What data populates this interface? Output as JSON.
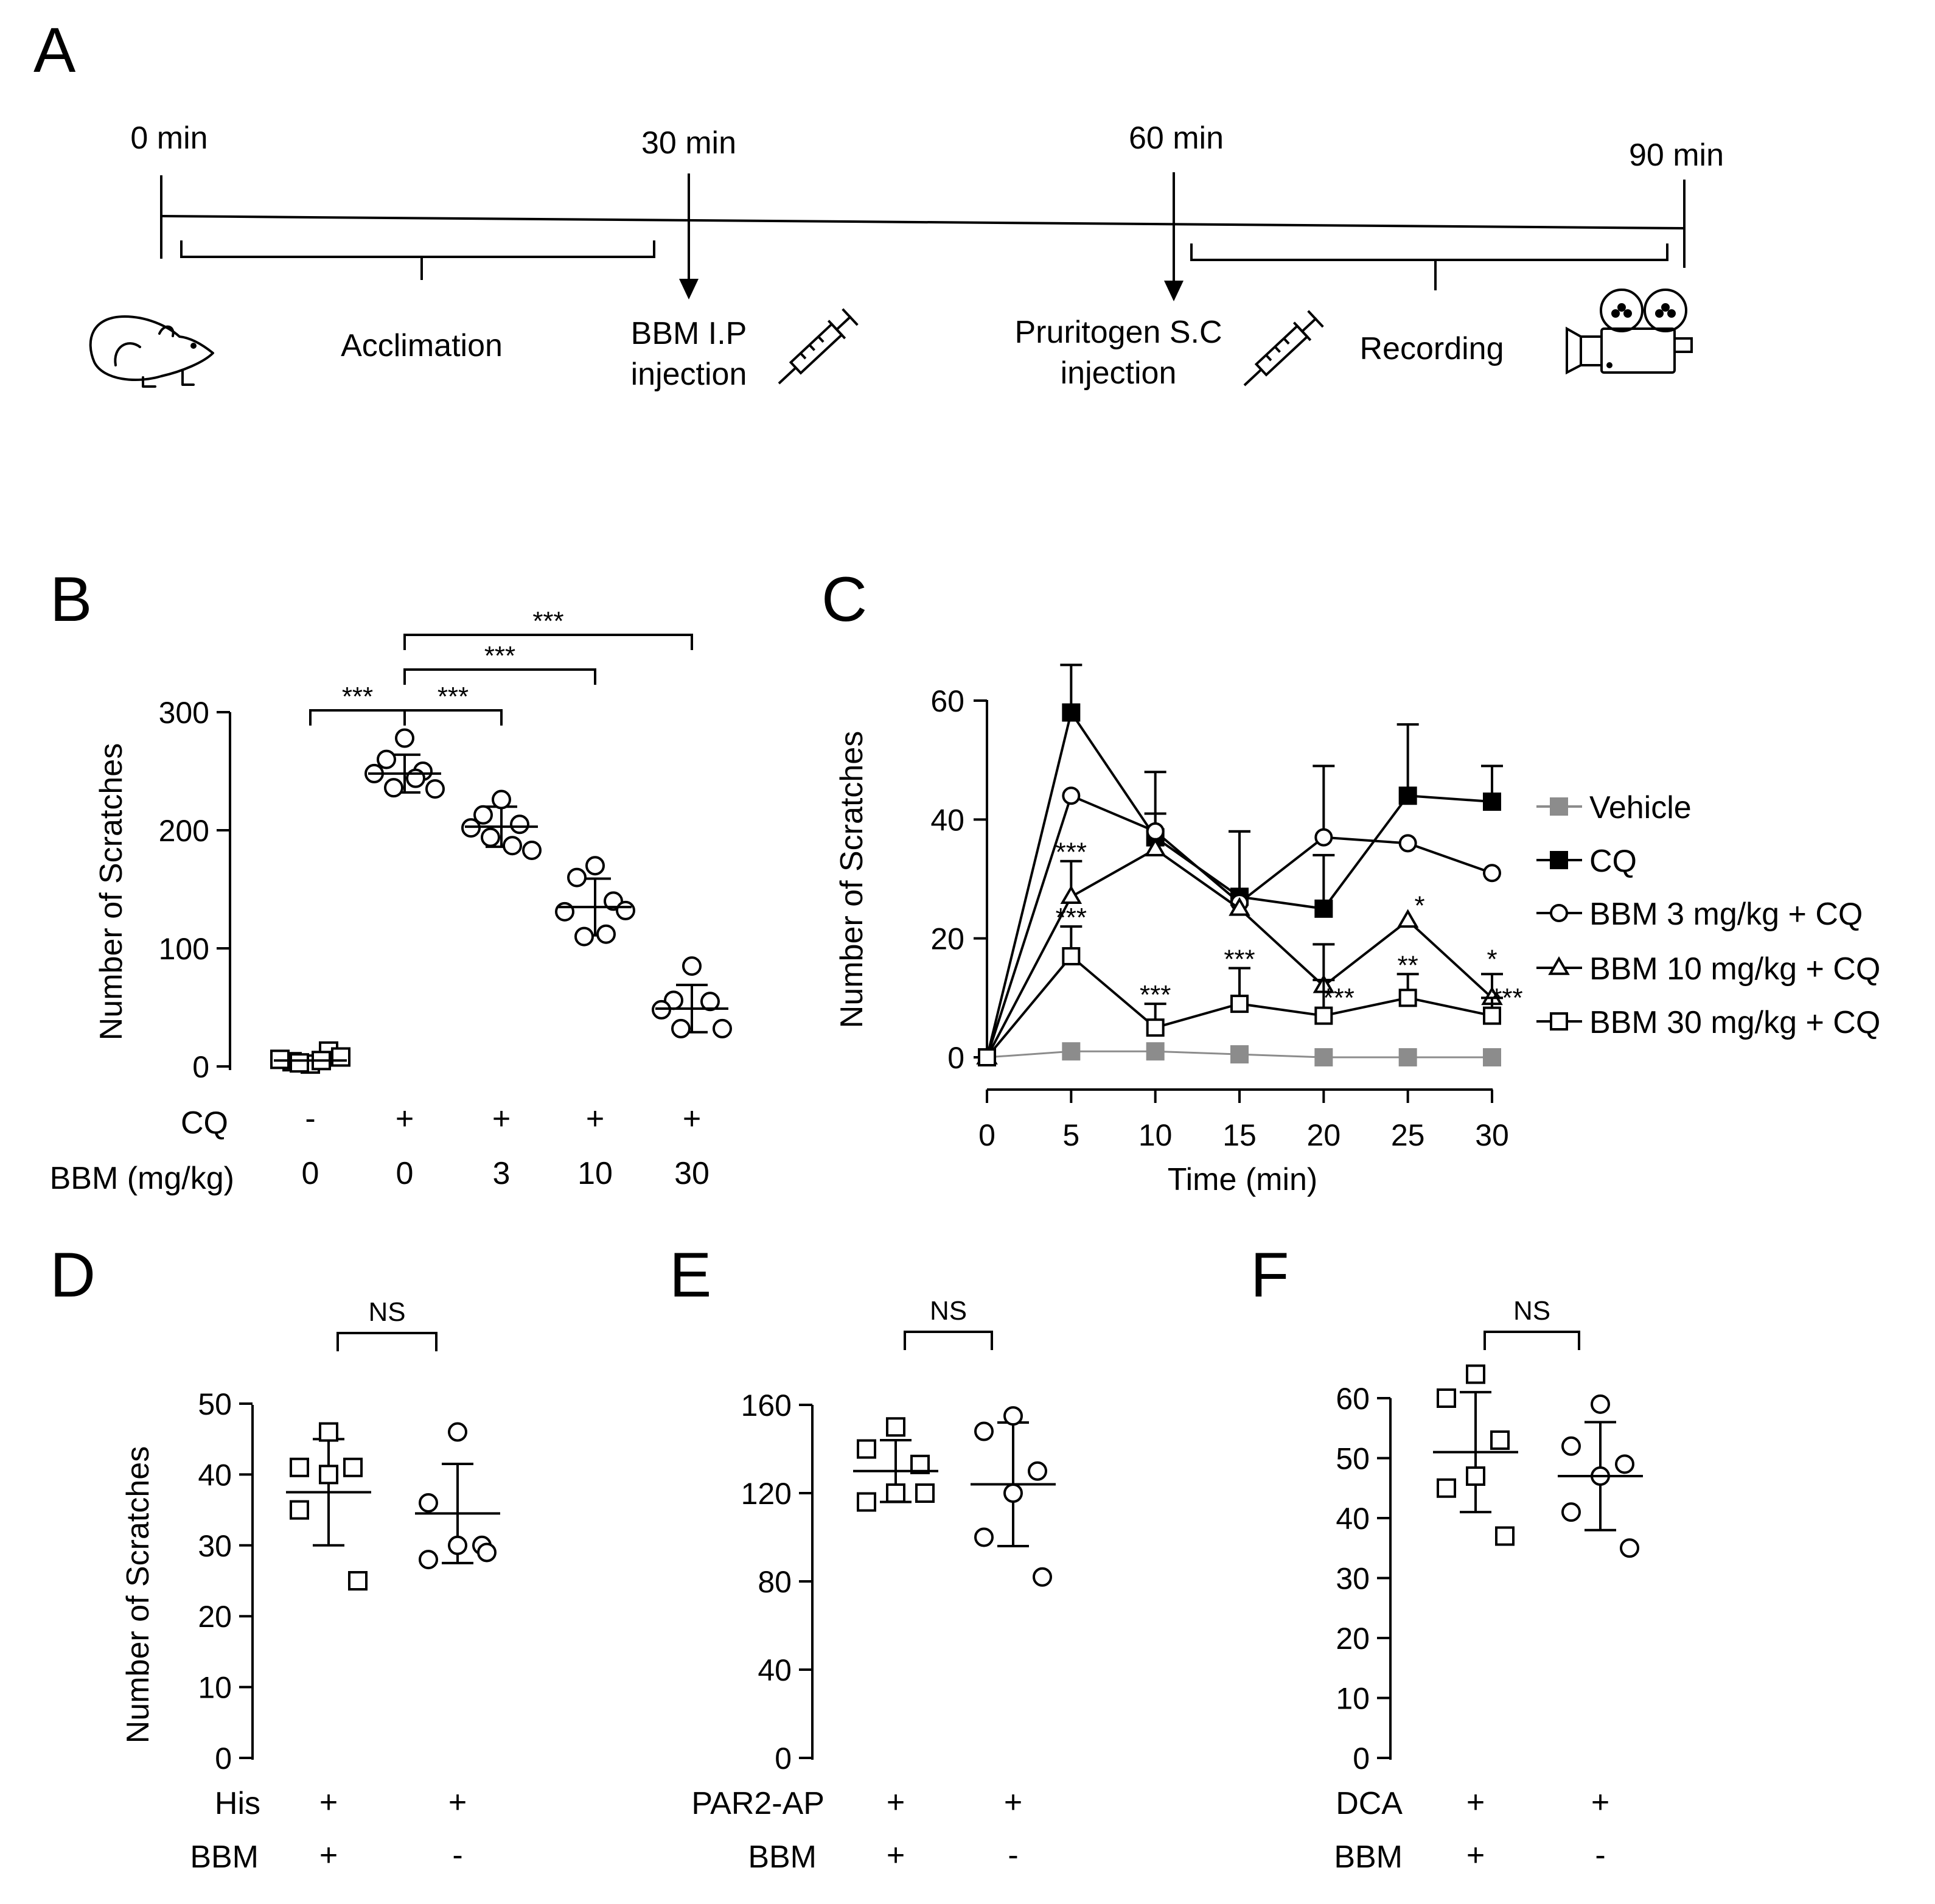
{
  "panel_labels": {
    "A": "A",
    "B": "B",
    "C": "C",
    "D": "D",
    "E": "E",
    "F": "F"
  },
  "timeline": {
    "times": [
      "0 min",
      "30 min",
      "60 min",
      "90 min"
    ],
    "acclimation": "Acclimation",
    "bbm_line1": "BBM I.P",
    "bbm_line2": "injection",
    "prur_line1": "Pruritogen S.C",
    "prur_line2": "injection",
    "recording": "Recording",
    "icons": [
      "mouse-icon",
      "syringe-icon",
      "syringe-icon",
      "movie-camera-icon"
    ]
  },
  "chart_data": [
    {
      "id": "B",
      "type": "scatter",
      "ylabel": "Number of Scratches",
      "ylim": [
        0,
        300
      ],
      "yticks": [
        0,
        100,
        200,
        300
      ],
      "rows": [
        {
          "label": "CQ",
          "values": [
            "-",
            "+",
            "+",
            "+",
            "+"
          ]
        },
        {
          "label": "BBM (mg/kg)",
          "values": [
            "0",
            "0",
            "3",
            "10",
            "30"
          ]
        }
      ],
      "groups": [
        {
          "marker": "square",
          "mean": 5,
          "sd": 4,
          "points": [
            2,
            4,
            13,
            6,
            8,
            3,
            5
          ]
        },
        {
          "marker": "circle",
          "mean": 248,
          "sd": 16,
          "points": [
            278,
            260,
            250,
            248,
            235,
            236,
            244
          ]
        },
        {
          "marker": "circle",
          "mean": 203,
          "sd": 17,
          "points": [
            226,
            213,
            205,
            202,
            183,
            194,
            187
          ]
        },
        {
          "marker": "circle",
          "mean": 135,
          "sd": 24,
          "points": [
            170,
            160,
            140,
            131,
            132,
            110,
            112
          ]
        },
        {
          "marker": "circle",
          "mean": 49,
          "sd": 20,
          "points": [
            85,
            56,
            55,
            48,
            32,
            32
          ]
        }
      ],
      "brackets": [
        {
          "from": 0,
          "to": 1,
          "label": "***"
        },
        {
          "from": 1,
          "to": 2,
          "label": "***"
        },
        {
          "from": 1,
          "to": 3,
          "label": "***"
        },
        {
          "from": 1,
          "to": 4,
          "label": "***"
        }
      ]
    },
    {
      "id": "C",
      "type": "line",
      "xlabel": "Time (min)",
      "ylabel": "Number of Scratches",
      "x": [
        0,
        5,
        10,
        15,
        20,
        25,
        30
      ],
      "ylim": [
        0,
        60
      ],
      "yticks": [
        0,
        20,
        40,
        60
      ],
      "series": [
        {
          "name": "Vehicle",
          "marker": "square-filled",
          "color": "#8c8c8c",
          "values": [
            0,
            1,
            1,
            0.5,
            0,
            0,
            0
          ],
          "err": [
            0,
            0,
            0,
            0,
            0,
            0,
            0
          ]
        },
        {
          "name": "CQ",
          "marker": "square-filled",
          "color": "#000000",
          "values": [
            0,
            58,
            37,
            27,
            25,
            44,
            43
          ],
          "err": [
            0,
            8,
            11,
            11,
            9,
            12,
            6
          ]
        },
        {
          "name": "BBM 3 mg/kg + CQ",
          "marker": "circle",
          "color": "#000000",
          "values": [
            0,
            44,
            38,
            26,
            37,
            36,
            31
          ],
          "err": [
            0,
            0,
            3,
            12,
            12,
            0,
            0
          ]
        },
        {
          "name": "BBM 10 mg/kg + CQ",
          "marker": "triangle",
          "color": "#000000",
          "values": [
            0,
            27,
            35,
            25,
            12,
            23,
            10
          ],
          "err": [
            0,
            6,
            0,
            0,
            7,
            0,
            4
          ]
        },
        {
          "name": "BBM 30 mg/kg + CQ",
          "marker": "square",
          "color": "#000000",
          "values": [
            0,
            17,
            5,
            9,
            7,
            10,
            7
          ],
          "err": [
            0,
            5,
            4,
            6,
            6,
            4,
            3
          ]
        }
      ],
      "annotations": [
        {
          "x": 5,
          "y": 33,
          "text": "***"
        },
        {
          "x": 5,
          "y": 22,
          "text": "***"
        },
        {
          "x": 10,
          "y": 9,
          "text": "***"
        },
        {
          "x": 15,
          "y": 15,
          "text": "***"
        },
        {
          "x": 20.9,
          "y": 8.5,
          "text": "***"
        },
        {
          "x": 25,
          "y": 14,
          "text": "**"
        },
        {
          "x": 25.7,
          "y": 24,
          "text": "*"
        },
        {
          "x": 30,
          "y": 15,
          "text": "*"
        },
        {
          "x": 30.9,
          "y": 8.5,
          "text": "***"
        }
      ]
    },
    {
      "id": "D",
      "type": "scatter",
      "ylabel": "Number of Scratches",
      "ylim": [
        0,
        50
      ],
      "yticks": [
        0,
        10,
        20,
        30,
        40,
        50
      ],
      "rows": [
        {
          "label": "His",
          "values": [
            "+",
            "+"
          ]
        },
        {
          "label": "BBM",
          "values": [
            "+",
            "-"
          ]
        }
      ],
      "bracket_label": "NS",
      "groups": [
        {
          "marker": "square",
          "mean": 37.5,
          "sd": 7.5,
          "points": [
            46,
            41,
            41,
            40,
            35,
            25
          ]
        },
        {
          "marker": "circle",
          "mean": 34.5,
          "sd": 7,
          "points": [
            46,
            36,
            30,
            30,
            28,
            29
          ]
        }
      ]
    },
    {
      "id": "E",
      "type": "scatter",
      "ylim": [
        0,
        160
      ],
      "yticks": [
        0,
        40,
        80,
        120,
        160
      ],
      "rows": [
        {
          "label": "PAR2-AP",
          "values": [
            "+",
            "+"
          ]
        },
        {
          "label": "BBM",
          "values": [
            "+",
            "-"
          ]
        }
      ],
      "bracket_label": "NS",
      "groups": [
        {
          "marker": "square",
          "mean": 130,
          "sd": 14,
          "points": [
            150,
            140,
            133,
            120,
            116,
            120
          ]
        },
        {
          "marker": "circle",
          "mean": 124,
          "sd": 28,
          "points": [
            155,
            148,
            130,
            120,
            100,
            82
          ]
        }
      ]
    },
    {
      "id": "F",
      "type": "scatter",
      "ylim": [
        0,
        60
      ],
      "yticks": [
        0,
        10,
        20,
        30,
        40,
        50,
        60
      ],
      "rows": [
        {
          "label": "DCA",
          "values": [
            "+",
            "+"
          ]
        },
        {
          "label": "BBM",
          "values": [
            "+",
            "-"
          ]
        }
      ],
      "bracket_label": "NS",
      "groups": [
        {
          "marker": "square",
          "mean": 51,
          "sd": 10,
          "points": [
            64,
            60,
            53,
            47,
            45,
            37
          ]
        },
        {
          "marker": "circle",
          "mean": 47,
          "sd": 9,
          "points": [
            59,
            52,
            49,
            47,
            41,
            35
          ]
        }
      ]
    }
  ]
}
